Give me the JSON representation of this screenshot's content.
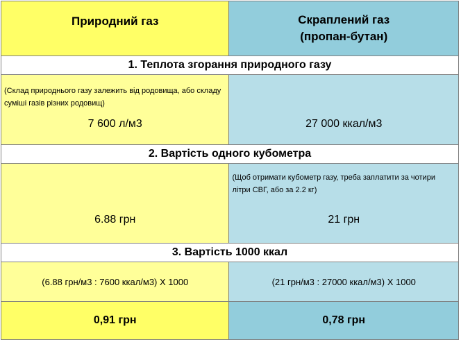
{
  "header": {
    "left": "Природний газ",
    "right_line1": "Скраплений газ",
    "right_line2": "(пропан-бутан)"
  },
  "sections": [
    {
      "title": "1. Теплота згорання природного газу",
      "left_note": "(Склад природнього газу залежить від родовища, або складу суміші газів різних родовищ)",
      "left_value": "7 600 л/м3",
      "right_note": "",
      "right_value": "27 000 ккал/м3"
    },
    {
      "title": "2. Вартість одного кубометра",
      "left_note": "",
      "left_value": "6.88 грн",
      "right_note": "(Щоб отримати кубометр газу, треба заплатити за чотири літри СВГ, або за 2.2 кг)",
      "right_value": "21 грн"
    },
    {
      "title": "3. Вартість 1000 ккал",
      "left_formula": "(6.88 грн/м3 : 7600 ккал/м3) X 1000",
      "right_formula": "(21 грн/м3 : 27000 ккал/м3) X 1000",
      "left_result": "0,91 грн",
      "right_result": "0,78 грн"
    }
  ],
  "colors": {
    "yellow_strong": "#ffff66",
    "yellow_light": "#ffff99",
    "blue_strong": "#92cddc",
    "blue_light": "#b7dee8",
    "border": "#7f7f7f"
  }
}
